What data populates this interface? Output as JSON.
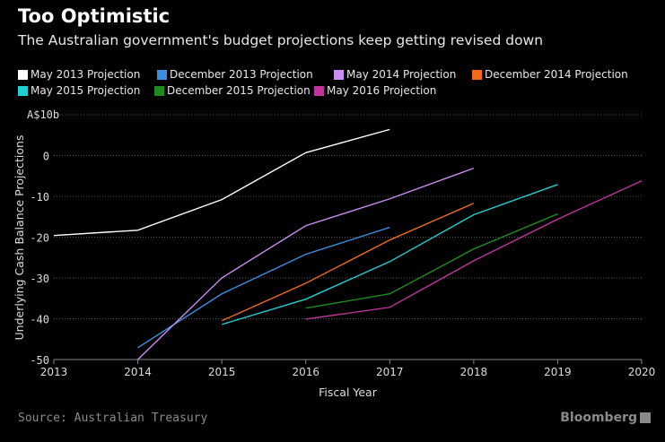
{
  "header": {
    "title": "Too Optimistic",
    "subtitle": "The Australian government's budget projections keep getting revised down"
  },
  "footer": {
    "source": "Source: Australian Treasury",
    "logo": "Bloomberg"
  },
  "chart_data": {
    "type": "line",
    "xlabel": "Fiscal Year",
    "ylabel": "Underlying Cash Balance Projections",
    "y_unit_label": "A$10b",
    "xlim": [
      2013,
      2020
    ],
    "ylim": [
      -50,
      10
    ],
    "x_ticks": [
      "2013",
      "2014",
      "2015",
      "2016",
      "2017",
      "2018",
      "2019",
      "2020"
    ],
    "y_ticks": [
      "0",
      "-10",
      "-20",
      "-30",
      "-40",
      "-50"
    ],
    "grid": true,
    "legend_placement": "top",
    "series": [
      {
        "name": "May 2013 Projection",
        "color": "#ffffff",
        "x": [
          2013,
          2014,
          2015,
          2016,
          2017
        ],
        "values": [
          -19.6,
          -18.3,
          -10.8,
          0.7,
          6.4
        ]
      },
      {
        "name": "December 2013 Projection",
        "color": "#3a8fe0",
        "x": [
          2014,
          2015,
          2016,
          2017
        ],
        "values": [
          -47.1,
          -33.9,
          -24.2,
          -17.6
        ]
      },
      {
        "name": "May 2014 Projection",
        "color": "#c98ef0",
        "x": [
          2014,
          2015,
          2016,
          2017,
          2018
        ],
        "values": [
          -50,
          -30,
          -17.2,
          -10.6,
          -3.1
        ]
      },
      {
        "name": "December 2014 Projection",
        "color": "#f06a1a",
        "x": [
          2015,
          2016,
          2017,
          2018
        ],
        "values": [
          -40.5,
          -31.3,
          -20.7,
          -11.7
        ]
      },
      {
        "name": "May 2015 Projection",
        "color": "#22d0d0",
        "x": [
          2015,
          2016,
          2017,
          2018,
          2019
        ],
        "values": [
          -41.4,
          -35.2,
          -26.0,
          -14.5,
          -7.1
        ]
      },
      {
        "name": "December 2015 Projection",
        "color": "#1f8a1f",
        "x": [
          2016,
          2017,
          2018,
          2019
        ],
        "values": [
          -37.4,
          -33.9,
          -22.9,
          -14.3
        ]
      },
      {
        "name": "May 2016 Projection",
        "color": "#c0359a",
        "x": [
          2016,
          2017,
          2018,
          2019,
          2020
        ],
        "values": [
          -40.1,
          -37.2,
          -25.8,
          -15.6,
          -6.2
        ]
      }
    ]
  }
}
